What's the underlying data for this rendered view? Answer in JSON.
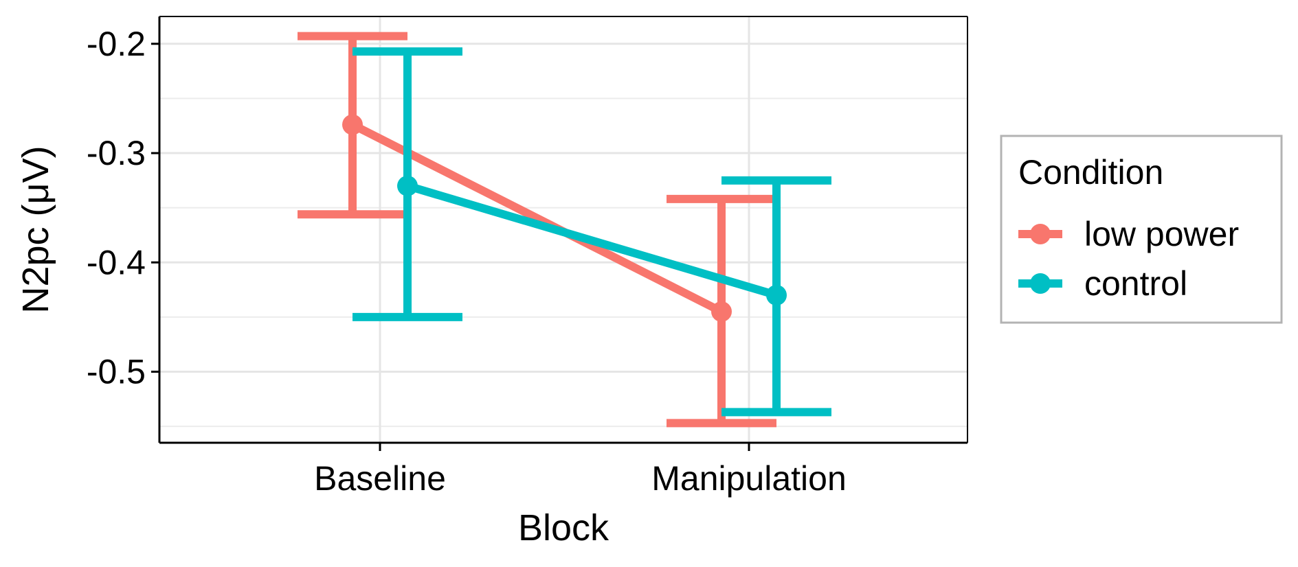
{
  "chart_data": {
    "type": "line",
    "title": "",
    "xlabel": "Block",
    "ylabel": "N2pc (μV)",
    "categories": [
      "Baseline",
      "Manipulation"
    ],
    "ylim": [
      -0.565,
      -0.175
    ],
    "yticks": [
      -0.5,
      -0.4,
      -0.3,
      -0.2
    ],
    "ytick_labels": [
      "-0.5",
      "-0.4",
      "-0.3",
      "-0.2"
    ],
    "grid": true,
    "error_bars": true,
    "legend": {
      "title": "Condition",
      "position": "right"
    },
    "series": [
      {
        "name": "low power",
        "color": "#F8766D",
        "values": [
          -0.274,
          -0.445
        ],
        "error_low": [
          -0.356,
          -0.547
        ],
        "error_high": [
          -0.193,
          -0.342
        ]
      },
      {
        "name": "control",
        "color": "#00BFC4",
        "values": [
          -0.33,
          -0.43
        ],
        "error_low": [
          -0.45,
          -0.537
        ],
        "error_high": [
          -0.207,
          -0.325
        ]
      }
    ]
  }
}
